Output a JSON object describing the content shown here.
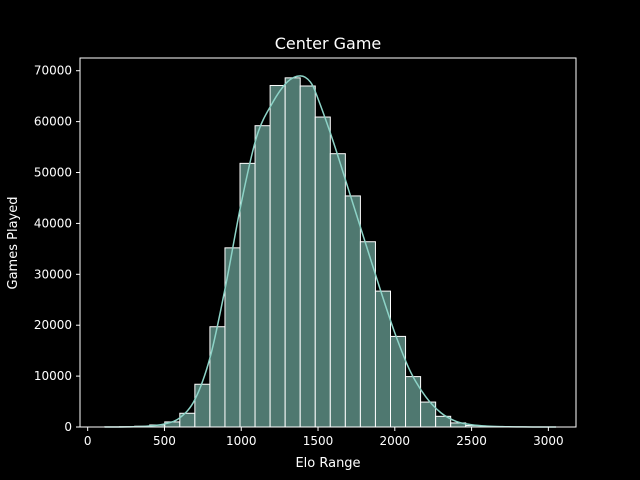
{
  "chart_data": {
    "type": "bar",
    "title": "Center Game",
    "xlabel": "Elo Range",
    "ylabel": "Games Played",
    "xlim": [
      -50,
      3180
    ],
    "ylim": [
      0,
      72500
    ],
    "xticks": [
      0,
      500,
      1000,
      1500,
      2000,
      2500,
      3000
    ],
    "yticks": [
      0,
      10000,
      20000,
      30000,
      40000,
      50000,
      60000,
      70000
    ],
    "bin_width": 98,
    "bins": [
      {
        "x0": 110,
        "x1": 208,
        "value": 20
      },
      {
        "x0": 208,
        "x1": 306,
        "value": 50
      },
      {
        "x0": 306,
        "x1": 404,
        "value": 150
      },
      {
        "x0": 404,
        "x1": 502,
        "value": 400
      },
      {
        "x0": 502,
        "x1": 600,
        "value": 1000
      },
      {
        "x0": 600,
        "x1": 698,
        "value": 2700
      },
      {
        "x0": 698,
        "x1": 796,
        "value": 8400
      },
      {
        "x0": 796,
        "x1": 894,
        "value": 19700
      },
      {
        "x0": 894,
        "x1": 992,
        "value": 35200
      },
      {
        "x0": 992,
        "x1": 1090,
        "value": 51800
      },
      {
        "x0": 1090,
        "x1": 1188,
        "value": 59200
      },
      {
        "x0": 1188,
        "x1": 1286,
        "value": 67100
      },
      {
        "x0": 1286,
        "x1": 1384,
        "value": 68600
      },
      {
        "x0": 1384,
        "x1": 1482,
        "value": 67000
      },
      {
        "x0": 1482,
        "x1": 1580,
        "value": 60900
      },
      {
        "x0": 1580,
        "x1": 1678,
        "value": 53700
      },
      {
        "x0": 1678,
        "x1": 1776,
        "value": 45400
      },
      {
        "x0": 1776,
        "x1": 1874,
        "value": 36400
      },
      {
        "x0": 1874,
        "x1": 1972,
        "value": 26700
      },
      {
        "x0": 1972,
        "x1": 2070,
        "value": 17800
      },
      {
        "x0": 2070,
        "x1": 2168,
        "value": 9900
      },
      {
        "x0": 2168,
        "x1": 2266,
        "value": 4900
      },
      {
        "x0": 2266,
        "x1": 2364,
        "value": 2100
      },
      {
        "x0": 2364,
        "x1": 2462,
        "value": 800
      },
      {
        "x0": 2462,
        "x1": 2560,
        "value": 300
      },
      {
        "x0": 2560,
        "x1": 2658,
        "value": 100
      },
      {
        "x0": 2658,
        "x1": 2756,
        "value": 40
      },
      {
        "x0": 2756,
        "x1": 2854,
        "value": 15
      },
      {
        "x0": 2854,
        "x1": 2952,
        "value": 5
      },
      {
        "x0": 2952,
        "x1": 3050,
        "value": 2
      }
    ],
    "kde": {
      "x": [
        110,
        300,
        400,
        500,
        600,
        700,
        800,
        900,
        1000,
        1100,
        1200,
        1300,
        1385,
        1450,
        1500,
        1600,
        1700,
        1800,
        1900,
        2000,
        2100,
        2200,
        2300,
        2400,
        2500,
        2600,
        2700,
        2800,
        2900,
        3050
      ],
      "y": [
        0,
        50,
        200,
        600,
        1800,
        5500,
        14000,
        28000,
        44000,
        57000,
        63500,
        67800,
        69000,
        67800,
        64500,
        56000,
        46500,
        37000,
        27500,
        18500,
        11000,
        6000,
        2800,
        1100,
        450,
        180,
        70,
        25,
        10,
        0
      ]
    },
    "grid": false,
    "legend": "none",
    "colors": {
      "background": "#000000",
      "bar_fill": "#4f7870",
      "bar_edge": "#ffffff",
      "kde_line": "#8dd3c7",
      "axes": "#ffffff",
      "text": "#ffffff"
    }
  }
}
